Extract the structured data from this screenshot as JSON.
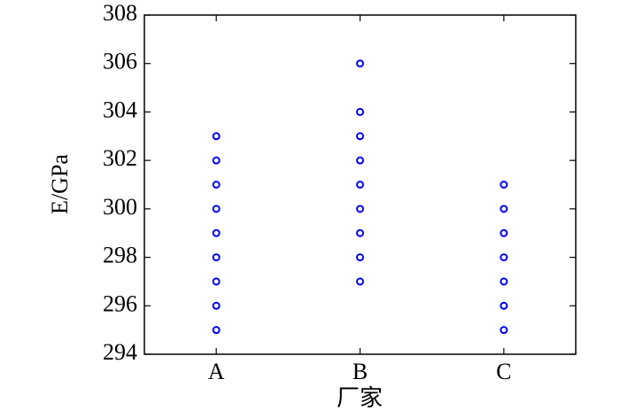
{
  "chart_data": {
    "type": "scatter",
    "x_label": "厂家",
    "y_label": "E/GPa",
    "categories": [
      "A",
      "B",
      "C"
    ],
    "values": [
      [
        295,
        296,
        297,
        298,
        299,
        300,
        301,
        302,
        303
      ],
      [
        297,
        298,
        299,
        300,
        301,
        302,
        303,
        304,
        306
      ],
      [
        295,
        296,
        297,
        298,
        299,
        300,
        301
      ]
    ],
    "color": "#0000ff",
    "ylim": [
      294,
      308
    ],
    "yticks": [
      294,
      296,
      298,
      300,
      302,
      304,
      306,
      308
    ],
    "grid": false
  }
}
